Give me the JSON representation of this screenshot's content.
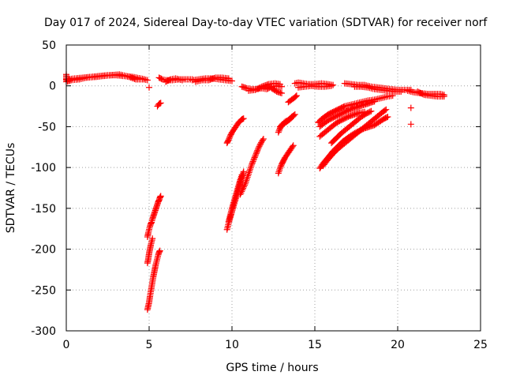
{
  "chart_data": {
    "type": "scatter",
    "title": "Day 017 of 2024, Sidereal Day-to-day VTEC variation (SDTVAR) for receiver norf",
    "xlabel": "GPS time / hours",
    "ylabel": "SDTVAR / TECUs",
    "xlim": [
      0,
      25
    ],
    "ylim": [
      -300,
      50
    ],
    "xticks": [
      0,
      5,
      10,
      15,
      20,
      25
    ],
    "yticks": [
      -300,
      -250,
      -200,
      -150,
      -100,
      -50,
      0,
      50
    ],
    "grid": true,
    "marker": "+",
    "color": "#ff0000",
    "segments": [
      [
        [
          0.0,
          8
        ],
        [
          0.5,
          9
        ],
        [
          1.0,
          10
        ],
        [
          1.5,
          11
        ],
        [
          2.0,
          12
        ],
        [
          2.5,
          13
        ],
        [
          3.0,
          13
        ],
        [
          3.5,
          12
        ],
        [
          4.0,
          11
        ],
        [
          4.5,
          9
        ],
        [
          4.9,
          7
        ]
      ],
      [
        [
          0.0,
          14
        ],
        [
          0.0,
          5
        ],
        [
          0.3,
          7
        ],
        [
          0.8,
          8
        ],
        [
          1.2,
          10
        ],
        [
          1.8,
          11
        ],
        [
          2.2,
          12
        ],
        [
          3.2,
          14
        ],
        [
          3.8,
          11
        ],
        [
          4.2,
          8
        ],
        [
          4.7,
          8
        ]
      ],
      [
        [
          5.0,
          -2
        ]
      ],
      [
        [
          5.5,
          -25
        ],
        [
          5.6,
          -22
        ],
        [
          5.7,
          -21
        ]
      ],
      [
        [
          5.6,
          10
        ],
        [
          5.8,
          8
        ],
        [
          6.0,
          7
        ],
        [
          6.4,
          7
        ],
        [
          6.8,
          8
        ],
        [
          7.2,
          8
        ],
        [
          7.6,
          8
        ]
      ],
      [
        [
          6.0,
          5
        ],
        [
          6.3,
          8
        ],
        [
          6.6,
          9
        ],
        [
          7.0,
          7
        ]
      ],
      [
        [
          7.6,
          7
        ],
        [
          8.0,
          8
        ],
        [
          8.4,
          9
        ],
        [
          8.8,
          9
        ],
        [
          9.2,
          8
        ],
        [
          9.6,
          7
        ],
        [
          10.0,
          6
        ]
      ],
      [
        [
          7.8,
          5
        ],
        [
          8.2,
          7
        ],
        [
          8.6,
          7
        ],
        [
          9.0,
          10
        ],
        [
          9.4,
          10
        ],
        [
          9.8,
          9
        ]
      ],
      [
        [
          10.6,
          -1
        ],
        [
          10.9,
          -3
        ],
        [
          11.2,
          -4
        ],
        [
          11.5,
          -4
        ],
        [
          11.8,
          -3
        ],
        [
          12.1,
          -4
        ],
        [
          12.4,
          -1
        ],
        [
          12.7,
          0
        ],
        [
          13.0,
          -1
        ]
      ],
      [
        [
          11.0,
          -6
        ],
        [
          11.4,
          -5
        ],
        [
          11.8,
          -1
        ],
        [
          12.2,
          2
        ],
        [
          12.6,
          3
        ],
        [
          12.9,
          2
        ]
      ],
      [
        [
          12.4,
          -3
        ],
        [
          12.7,
          -7
        ],
        [
          13.0,
          -9
        ]
      ],
      [
        [
          13.8,
          3
        ],
        [
          14.0,
          4
        ],
        [
          14.3,
          3
        ],
        [
          14.6,
          2
        ],
        [
          15.0,
          2
        ],
        [
          15.4,
          3
        ],
        [
          15.8,
          2
        ],
        [
          16.1,
          1
        ]
      ],
      [
        [
          14.0,
          -2
        ],
        [
          14.4,
          -1
        ],
        [
          14.8,
          0
        ],
        [
          15.2,
          -1
        ],
        [
          15.6,
          -1
        ],
        [
          16.0,
          0
        ]
      ],
      [
        [
          16.8,
          3
        ],
        [
          17.2,
          2
        ],
        [
          17.6,
          1
        ],
        [
          18.0,
          1
        ],
        [
          18.4,
          -1
        ],
        [
          18.8,
          -2
        ],
        [
          19.2,
          -3
        ],
        [
          19.6,
          -4
        ],
        [
          20.0,
          -5
        ],
        [
          20.4,
          -5
        ],
        [
          20.8,
          -5
        ]
      ],
      [
        [
          17.4,
          -1
        ],
        [
          17.8,
          -1
        ],
        [
          18.2,
          -2
        ],
        [
          18.6,
          -4
        ],
        [
          19.0,
          -5
        ],
        [
          19.4,
          -6
        ],
        [
          19.8,
          -7
        ],
        [
          20.2,
          -7
        ]
      ],
      [
        [
          20.6,
          -6
        ],
        [
          21.0,
          -8
        ],
        [
          21.4,
          -9
        ],
        [
          21.8,
          -10
        ],
        [
          22.2,
          -10
        ],
        [
          22.6,
          -10
        ],
        [
          22.8,
          -11
        ]
      ],
      [
        [
          21.2,
          -7
        ],
        [
          21.6,
          -11
        ],
        [
          22.0,
          -12
        ],
        [
          22.4,
          -13
        ],
        [
          22.8,
          -13
        ]
      ],
      [
        [
          20.8,
          -27
        ]
      ],
      [
        [
          20.8,
          -47
        ]
      ],
      [
        [
          4.9,
          -185
        ],
        [
          4.95,
          -180
        ],
        [
          5.0,
          -176
        ],
        [
          5.05,
          -172
        ],
        [
          5.1,
          -169
        ],
        [
          5.15,
          -167
        ],
        [
          5.2,
          -163
        ],
        [
          5.25,
          -160
        ],
        [
          5.3,
          -157
        ],
        [
          5.35,
          -154
        ],
        [
          5.4,
          -151
        ],
        [
          5.45,
          -148
        ],
        [
          5.5,
          -145
        ],
        [
          5.55,
          -142
        ],
        [
          5.6,
          -140
        ],
        [
          5.65,
          -137
        ],
        [
          5.7,
          -135
        ]
      ],
      [
        [
          4.9,
          -217
        ],
        [
          4.95,
          -212
        ],
        [
          5.0,
          -205
        ],
        [
          5.05,
          -200
        ],
        [
          5.1,
          -195
        ],
        [
          5.2,
          -187
        ]
      ],
      [
        [
          4.9,
          -274
        ],
        [
          5.0,
          -265
        ],
        [
          5.05,
          -258
        ],
        [
          5.1,
          -252
        ],
        [
          5.15,
          -246
        ],
        [
          5.2,
          -240
        ],
        [
          5.25,
          -234
        ],
        [
          5.3,
          -229
        ],
        [
          5.35,
          -224
        ],
        [
          5.4,
          -219
        ],
        [
          5.45,
          -215
        ],
        [
          5.5,
          -211
        ],
        [
          5.55,
          -207
        ],
        [
          5.6,
          -204
        ],
        [
          5.65,
          -202
        ]
      ],
      [
        [
          9.7,
          -70
        ],
        [
          9.8,
          -66
        ],
        [
          9.9,
          -61
        ],
        [
          10.0,
          -57
        ],
        [
          10.1,
          -54
        ],
        [
          10.2,
          -51
        ],
        [
          10.3,
          -48
        ],
        [
          10.4,
          -45
        ],
        [
          10.5,
          -43
        ],
        [
          10.6,
          -41
        ],
        [
          10.7,
          -40
        ]
      ],
      [
        [
          9.7,
          -176
        ],
        [
          9.8,
          -168
        ],
        [
          9.9,
          -161
        ],
        [
          10.0,
          -154
        ],
        [
          10.1,
          -147
        ],
        [
          10.2,
          -140
        ],
        [
          10.3,
          -133
        ],
        [
          10.4,
          -126
        ],
        [
          10.5,
          -119
        ],
        [
          10.6,
          -112
        ],
        [
          10.7,
          -105
        ]
      ],
      [
        [
          9.8,
          -166
        ],
        [
          9.9,
          -158
        ],
        [
          10.0,
          -150
        ],
        [
          10.1,
          -143
        ],
        [
          10.2,
          -136
        ],
        [
          10.3,
          -129
        ],
        [
          10.4,
          -122
        ],
        [
          10.5,
          -115
        ],
        [
          10.6,
          -109
        ]
      ],
      [
        [
          10.5,
          -133
        ],
        [
          10.8,
          -120
        ],
        [
          11.0,
          -108
        ],
        [
          11.2,
          -96
        ],
        [
          11.4,
          -86
        ],
        [
          11.6,
          -76
        ],
        [
          11.8,
          -68
        ],
        [
          11.9,
          -65
        ]
      ],
      [
        [
          12.8,
          -107
        ],
        [
          12.9,
          -101
        ],
        [
          13.0,
          -96
        ],
        [
          13.1,
          -92
        ],
        [
          13.2,
          -88
        ],
        [
          13.3,
          -85
        ],
        [
          13.4,
          -82
        ],
        [
          13.5,
          -79
        ],
        [
          13.6,
          -76
        ],
        [
          13.7,
          -73
        ]
      ],
      [
        [
          12.8,
          -57
        ],
        [
          12.9,
          -52
        ],
        [
          13.0,
          -48
        ],
        [
          13.2,
          -44
        ],
        [
          13.4,
          -42
        ],
        [
          13.6,
          -38
        ],
        [
          13.8,
          -35
        ]
      ],
      [
        [
          12.9,
          -50
        ],
        [
          13.1,
          -47
        ],
        [
          13.3,
          -44
        ],
        [
          13.5,
          -41
        ],
        [
          13.7,
          -37
        ]
      ],
      [
        [
          13.4,
          -20
        ],
        [
          13.6,
          -17
        ],
        [
          13.8,
          -14
        ],
        [
          13.9,
          -12
        ]
      ],
      [
        [
          15.2,
          -45
        ],
        [
          15.4,
          -41
        ],
        [
          15.6,
          -38
        ],
        [
          15.8,
          -35
        ],
        [
          16.0,
          -33
        ],
        [
          16.2,
          -31
        ],
        [
          16.4,
          -29
        ],
        [
          16.6,
          -27
        ],
        [
          16.8,
          -25
        ],
        [
          17.0,
          -24
        ],
        [
          17.4,
          -22
        ],
        [
          17.8,
          -20
        ],
        [
          18.2,
          -18
        ],
        [
          18.6,
          -17
        ],
        [
          19.0,
          -15
        ],
        [
          19.4,
          -13
        ],
        [
          19.7,
          -12
        ]
      ],
      [
        [
          15.3,
          -50
        ],
        [
          15.6,
          -45
        ],
        [
          15.9,
          -41
        ],
        [
          16.2,
          -38
        ],
        [
          16.5,
          -35
        ],
        [
          16.8,
          -32
        ],
        [
          17.1,
          -29
        ],
        [
          17.4,
          -27
        ],
        [
          17.7,
          -25
        ],
        [
          18.0,
          -23
        ],
        [
          18.3,
          -21
        ],
        [
          18.6,
          -19
        ]
      ],
      [
        [
          15.3,
          -62
        ],
        [
          15.6,
          -57
        ],
        [
          15.9,
          -52
        ],
        [
          16.2,
          -47
        ],
        [
          16.5,
          -43
        ],
        [
          16.8,
          -40
        ],
        [
          17.1,
          -37
        ],
        [
          17.4,
          -35
        ],
        [
          17.7,
          -33
        ],
        [
          18.0,
          -32
        ]
      ],
      [
        [
          15.3,
          -101
        ],
        [
          15.5,
          -95
        ],
        [
          15.7,
          -90
        ],
        [
          15.9,
          -85
        ],
        [
          16.1,
          -80
        ],
        [
          16.3,
          -76
        ],
        [
          16.5,
          -72
        ],
        [
          16.7,
          -68
        ],
        [
          16.9,
          -65
        ],
        [
          17.1,
          -62
        ],
        [
          17.4,
          -58
        ],
        [
          17.7,
          -55
        ],
        [
          18.0,
          -52
        ],
        [
          18.3,
          -50
        ],
        [
          18.6,
          -48
        ],
        [
          18.9,
          -44
        ],
        [
          19.2,
          -40
        ],
        [
          19.4,
          -38
        ]
      ],
      [
        [
          15.5,
          -98
        ],
        [
          15.8,
          -90
        ],
        [
          16.1,
          -83
        ],
        [
          16.4,
          -77
        ],
        [
          16.7,
          -72
        ],
        [
          17.0,
          -67
        ],
        [
          17.3,
          -62
        ],
        [
          17.6,
          -57
        ],
        [
          17.9,
          -52
        ],
        [
          18.2,
          -47
        ],
        [
          18.5,
          -42
        ],
        [
          18.8,
          -37
        ],
        [
          19.1,
          -32
        ],
        [
          19.3,
          -29
        ]
      ],
      [
        [
          16.0,
          -70
        ],
        [
          16.3,
          -64
        ],
        [
          16.6,
          -58
        ],
        [
          16.9,
          -53
        ],
        [
          17.2,
          -48
        ],
        [
          17.5,
          -43
        ],
        [
          17.8,
          -38
        ],
        [
          18.1,
          -34
        ],
        [
          18.4,
          -31
        ]
      ]
    ]
  }
}
